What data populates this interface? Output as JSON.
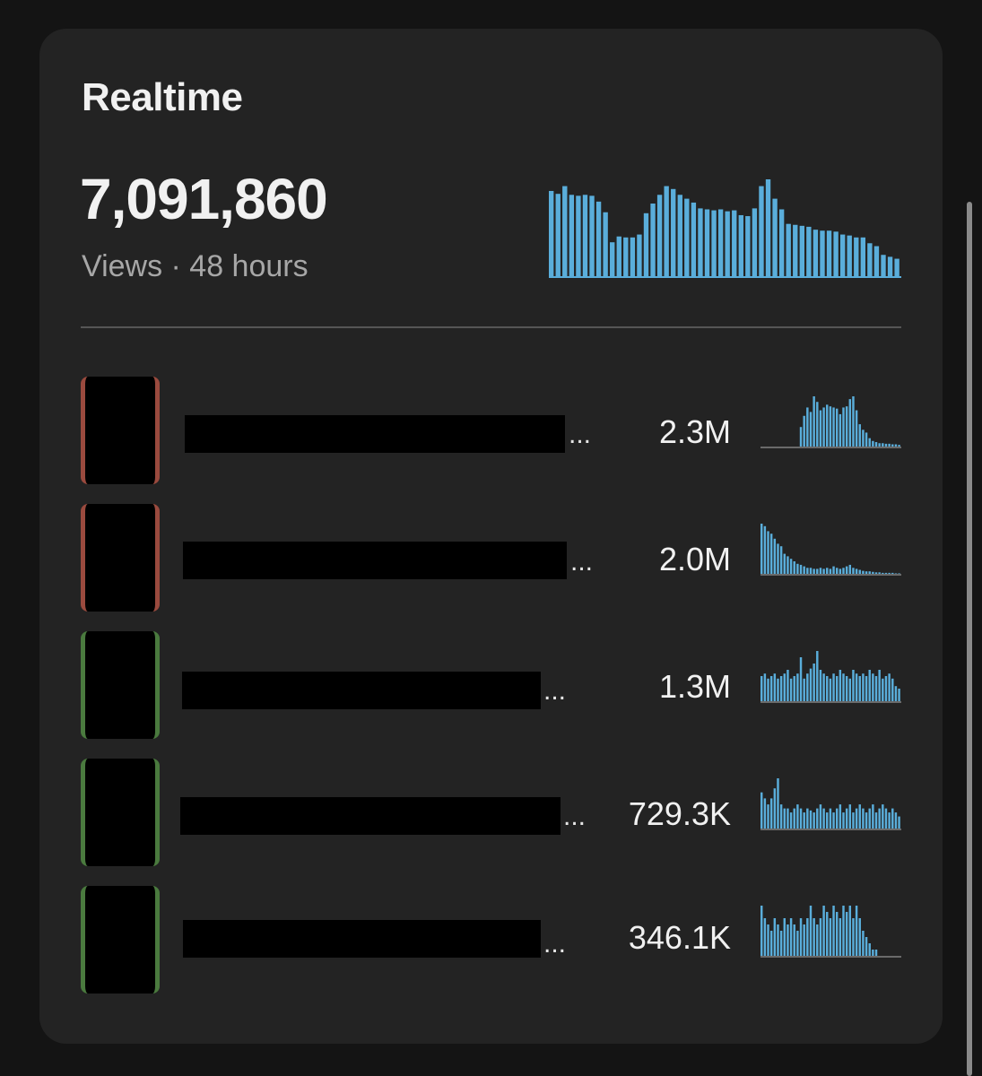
{
  "card": {
    "title": "Realtime",
    "total_views": "7,091,860",
    "subtitle": "Views · 48 hours"
  },
  "accent_color": "#5aaedb",
  "main_chart": {
    "values": [
      88,
      85,
      93,
      84,
      83,
      84,
      83,
      77,
      66,
      35,
      41,
      40,
      40,
      43,
      65,
      75,
      84,
      93,
      90,
      84,
      80,
      76,
      70,
      69,
      68,
      69,
      67,
      68,
      63,
      62,
      70,
      93,
      100,
      80,
      69,
      54,
      53,
      52,
      51,
      48,
      47,
      47,
      46,
      43,
      42,
      40,
      40,
      34,
      31,
      22,
      20,
      18
    ]
  },
  "rows": [
    {
      "views": "2.3M",
      "indicator": "red",
      "spark": [
        0,
        0,
        0,
        0,
        0,
        0,
        0,
        0,
        0,
        0,
        0,
        0,
        35,
        55,
        70,
        62,
        90,
        80,
        65,
        70,
        75,
        72,
        70,
        68,
        58,
        70,
        72,
        85,
        90,
        65,
        40,
        30,
        25,
        15,
        10,
        8,
        6,
        6,
        5,
        5,
        4,
        4,
        3
      ]
    },
    {
      "views": "2.0M",
      "indicator": "red",
      "spark": [
        100,
        95,
        85,
        80,
        70,
        60,
        55,
        40,
        35,
        30,
        25,
        20,
        18,
        15,
        12,
        12,
        10,
        10,
        12,
        10,
        12,
        10,
        15,
        12,
        10,
        12,
        15,
        18,
        12,
        10,
        8,
        6,
        5,
        5,
        4,
        3,
        3,
        2,
        2,
        2,
        2,
        1,
        1
      ]
    },
    {
      "views": "1.3M",
      "indicator": "green",
      "spark": [
        20,
        22,
        18,
        20,
        22,
        18,
        20,
        22,
        25,
        18,
        20,
        22,
        35,
        18,
        22,
        26,
        30,
        40,
        25,
        22,
        20,
        18,
        22,
        20,
        25,
        22,
        20,
        18,
        25,
        22,
        20,
        22,
        20,
        25,
        22,
        20,
        25,
        18,
        20,
        22,
        18,
        12,
        10
      ]
    },
    {
      "views": "729.3K",
      "indicator": "green",
      "spark": [
        18,
        15,
        12,
        15,
        20,
        25,
        12,
        10,
        10,
        8,
        10,
        12,
        10,
        8,
        10,
        9,
        8,
        10,
        12,
        10,
        8,
        10,
        8,
        10,
        12,
        8,
        10,
        12,
        8,
        10,
        12,
        10,
        8,
        10,
        12,
        8,
        10,
        12,
        10,
        8,
        10,
        8,
        6
      ]
    },
    {
      "views": "346.1K",
      "indicator": "green",
      "spark": [
        8,
        6,
        5,
        4,
        6,
        5,
        4,
        6,
        5,
        6,
        5,
        4,
        6,
        5,
        6,
        8,
        6,
        5,
        6,
        8,
        7,
        6,
        8,
        7,
        6,
        8,
        7,
        8,
        6,
        8,
        6,
        4,
        3,
        2,
        1,
        1,
        0,
        0,
        0,
        0,
        0,
        0,
        0
      ]
    }
  ]
}
